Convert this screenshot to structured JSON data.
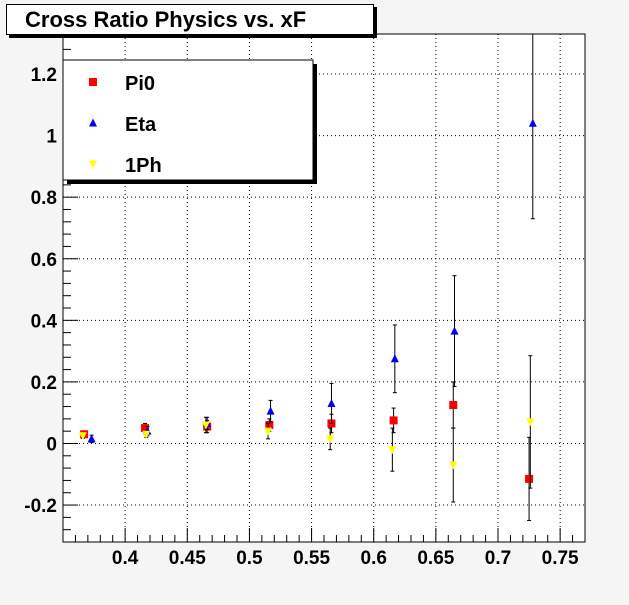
{
  "chart_data": {
    "type": "scatter",
    "title": "Cross Ratio Physics vs. xF",
    "xlim": [
      0.35,
      0.77
    ],
    "ylim": [
      -0.32,
      1.33
    ],
    "xticks": [
      0.4,
      0.45,
      0.5,
      0.55,
      0.6,
      0.65,
      0.7,
      0.75
    ],
    "xtick_labels": [
      "0.4",
      "0.45",
      "0.5",
      "0.55",
      "0.6",
      "0.65",
      "0.7",
      "0.75"
    ],
    "yticks": [
      -0.2,
      0,
      0.2,
      0.4,
      0.6,
      0.8,
      1,
      1.2
    ],
    "ytick_labels": [
      "-0.2",
      "0",
      "0.2",
      "0.4",
      "0.6",
      "0.8",
      "1",
      "1.2"
    ],
    "grid": true,
    "legend_position": "top-left",
    "series": [
      {
        "name": "Pi0",
        "color": "#ff0000",
        "marker": "square",
        "x": [
          0.367,
          0.416,
          0.466,
          0.516,
          0.566,
          0.616,
          0.664,
          0.725
        ],
        "y": [
          0.03,
          0.05,
          0.055,
          0.06,
          0.065,
          0.075,
          0.125,
          -0.115
        ],
        "err": [
          0.01,
          0.015,
          0.02,
          0.02,
          0.03,
          0.04,
          0.075,
          0.135
        ]
      },
      {
        "name": "Eta",
        "color": "#0000ff",
        "marker": "triangle-up",
        "x": [
          0.373,
          0.418,
          0.466,
          0.517,
          0.566,
          0.617,
          0.665,
          0.728
        ],
        "y": [
          0.015,
          0.04,
          0.065,
          0.105,
          0.13,
          0.275,
          0.365,
          1.04
        ],
        "err": [
          0.012,
          0.015,
          0.02,
          0.035,
          0.065,
          0.11,
          0.18,
          0.31
        ]
      },
      {
        "name": "1Ph",
        "color": "#ffff00",
        "marker": "triangle-down",
        "x": [
          0.366,
          0.417,
          0.465,
          0.515,
          0.565,
          0.615,
          0.664,
          0.726
        ],
        "y": [
          0.025,
          0.03,
          0.06,
          0.04,
          0.015,
          -0.02,
          -0.07,
          0.07
        ],
        "err": [
          0.008,
          0.01,
          0.025,
          0.025,
          0.035,
          0.07,
          0.12,
          0.215
        ]
      }
    ]
  }
}
